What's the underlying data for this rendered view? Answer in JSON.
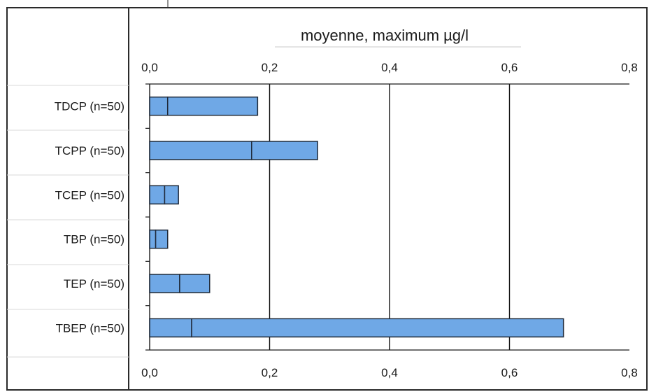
{
  "chart_data": {
    "type": "bar",
    "orientation": "horizontal",
    "title": "moyenne, maximum µg/l",
    "xlim": [
      0,
      0.8
    ],
    "xticks": [
      "0,0",
      "0,2",
      "0,4",
      "0,6",
      "0,8"
    ],
    "xtick_values": [
      0,
      0.2,
      0.4,
      0.6,
      0.8
    ],
    "categories": [
      "TDCP (n=50)",
      "TCPP (n=50)",
      "TCEP (n=50)",
      "TBP (n=50)",
      "TEP (n=50)",
      "TBEP (n=50)"
    ],
    "series": [
      {
        "name": "moyenne",
        "values": [
          0.03,
          0.17,
          0.025,
          0.01,
          0.05,
          0.07
        ]
      },
      {
        "name": "maximum",
        "values": [
          0.18,
          0.28,
          0.048,
          0.03,
          0.1,
          0.69
        ]
      }
    ],
    "grid": true,
    "axis_ticks_top_and_bottom": true,
    "colors": {
      "bar": "#6fa8e6",
      "edge": "#1f2a3a",
      "grid": "#111111"
    }
  }
}
